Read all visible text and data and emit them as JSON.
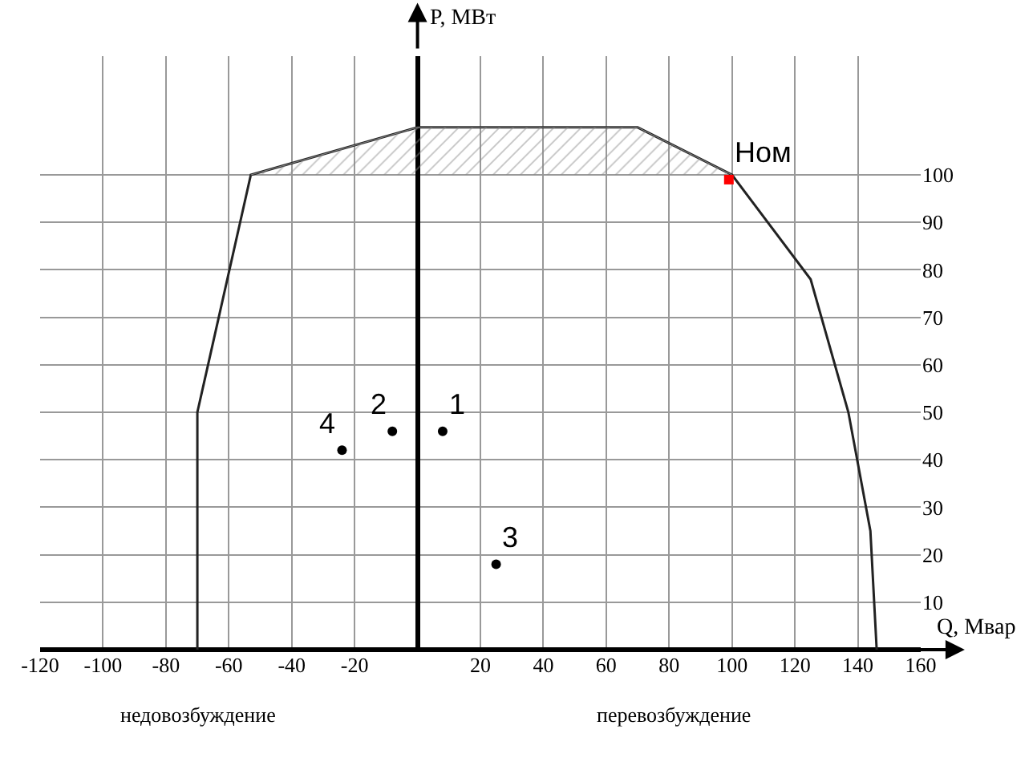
{
  "chart_data": {
    "type": "line",
    "xlabel": "Q, Мвар",
    "ylabel": "P, МВт",
    "xlim": [
      -120,
      160
    ],
    "ylim": [
      0,
      125
    ],
    "xticks": [
      -120,
      -100,
      -80,
      -60,
      -40,
      -20,
      {
        "value": 0,
        "label": null
      },
      20,
      40,
      60,
      80,
      100,
      120,
      140,
      160
    ],
    "yticks": [
      10,
      20,
      30,
      40,
      50,
      60,
      70,
      80,
      90,
      100
    ],
    "grid": true,
    "legend": false,
    "series": [
      {
        "color": "#222222",
        "x": [
          -70,
          -70,
          -53,
          0,
          70,
          100,
          125,
          137,
          144,
          146
        ],
        "values": [
          0,
          50,
          100,
          110,
          110,
          100,
          78,
          50,
          25,
          0
        ]
      },
      {
        "type": "area",
        "color": "#888888",
        "x": [
          -53,
          0,
          70,
          100
        ],
        "values": [
          100,
          110,
          110,
          100
        ]
      },
      {
        "type": "scatter",
        "color": "#000000",
        "marker": "circle",
        "x": [
          8,
          -8,
          25,
          -24
        ],
        "values": [
          46,
          46,
          18,
          42
        ]
      },
      {
        "type": "scatter",
        "color": "#ff0000",
        "marker": "square",
        "x": [
          99
        ],
        "values": [
          99
        ]
      }
    ],
    "annotations": [
      {
        "text": "1",
        "x": 8,
        "y": 46
      },
      {
        "text": "2",
        "x": -8,
        "y": 46
      },
      {
        "text": "3",
        "x": 25,
        "y": 18
      },
      {
        "text": "4",
        "x": -24,
        "y": 42
      },
      {
        "text": "Ном",
        "x": 99,
        "y": 99
      },
      "недовозбуждение",
      "перевозбуждение"
    ]
  }
}
